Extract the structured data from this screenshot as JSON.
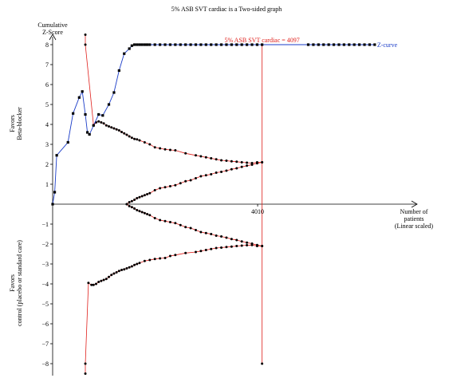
{
  "chart_data": {
    "type": "line",
    "title": "5% ASB SVT cardiac is a Two-sided graph",
    "ylabel_line1": "Cumulative",
    "ylabel_line2": "Z-Score",
    "xlabel_line1": "Number of",
    "xlabel_line2": "patients",
    "xlabel_line3": "(Linear scaled)",
    "upper_side_label_line1": "Favors",
    "upper_side_label_line2": "Beta-blocker",
    "lower_side_label_line1": "Favors",
    "lower_side_label_line2": "control (placebo or standard care)",
    "ylim": [
      -8.5,
      8.5
    ],
    "xlim": [
      0,
      7000
    ],
    "yticks": [
      -8,
      -7,
      -6,
      -5,
      -4,
      -3,
      -2,
      -1,
      1,
      2,
      3,
      4,
      5,
      6,
      7,
      8
    ],
    "x_tick_value": 4010,
    "x_tick_label": "4010",
    "ris_value": 4097,
    "ris_label": "5% ASB SVT cardiac = 4097",
    "zcurve_label": "Z-curve",
    "colors": {
      "zcurve": "#1a3cc8",
      "boundary": "#e0201c",
      "markers": "#000000"
    },
    "zcurve": {
      "name": "Z-curve",
      "x": [
        0,
        40,
        80,
        300,
        400,
        520,
        580,
        640,
        680,
        720,
        800,
        900,
        980,
        1100,
        1200,
        1300,
        1400,
        1500,
        1550,
        1600,
        1650,
        1700,
        1750,
        1800,
        1850,
        1900,
        2000,
        2100,
        2200,
        2300,
        2400,
        2500,
        2600,
        2700,
        2800,
        2900,
        3000,
        3100,
        3200,
        3300,
        3400,
        3500,
        3600,
        3700,
        3800,
        3900,
        4000,
        4097,
        5000,
        5100,
        5200,
        5300,
        5400,
        5500,
        5600,
        5700,
        5800,
        5900,
        6000,
        6100,
        6200,
        6300
      ],
      "y": [
        0,
        0.6,
        2.45,
        3.1,
        4.55,
        5.35,
        5.65,
        4.5,
        3.6,
        3.5,
        3.95,
        4.5,
        4.45,
        5.0,
        5.6,
        6.7,
        7.55,
        7.8,
        7.95,
        8.0,
        8.0,
        8.0,
        8.0,
        8.0,
        8.0,
        8.0,
        8.0,
        8.0,
        8.0,
        8.0,
        8.0,
        8.0,
        8.0,
        8.0,
        8.0,
        8.0,
        8.0,
        8.0,
        8.0,
        8.0,
        8.0,
        8.0,
        8.0,
        8.0,
        8.0,
        8.0,
        8.0,
        8.0,
        8.0,
        8.0,
        8.0,
        8.0,
        8.0,
        8.0,
        8.0,
        8.0,
        8.0,
        8.0,
        8.0,
        8.0,
        8.0,
        8.0
      ]
    },
    "upper_efficacy_boundary": {
      "x": [
        640,
        640,
        800,
        850,
        900,
        950,
        1000,
        1050,
        1100,
        1150,
        1200,
        1250,
        1300,
        1350,
        1400,
        1450,
        1500,
        1550,
        1600,
        1650,
        1700,
        1800,
        1900,
        2000,
        2100,
        2200,
        2300,
        2400,
        2600,
        2800,
        2900,
        3000,
        3100,
        3200,
        3300,
        3400,
        3500,
        3600,
        3700,
        3800,
        3900,
        4000,
        4097
      ],
      "y": [
        8.5,
        8.0,
        3.95,
        4.1,
        4.15,
        4.1,
        4.05,
        3.95,
        3.9,
        3.85,
        3.8,
        3.75,
        3.7,
        3.62,
        3.55,
        3.48,
        3.4,
        3.33,
        3.27,
        3.25,
        3.2,
        3.1,
        3.0,
        2.85,
        2.8,
        2.75,
        2.72,
        2.7,
        2.55,
        2.45,
        2.4,
        2.35,
        2.3,
        2.25,
        2.2,
        2.18,
        2.15,
        2.13,
        2.1,
        2.08,
        2.06,
        2.1,
        2.1
      ]
    },
    "upper_futility_boundary": {
      "x": [
        1450,
        1500,
        1550,
        1600,
        1650,
        1700,
        1750,
        1800,
        1850,
        1900,
        2000,
        2100,
        2200,
        2300,
        2400,
        2500,
        2600,
        2700,
        2800,
        2900,
        3000,
        3100,
        3200,
        3300,
        3400,
        3500,
        3600,
        3700,
        3800,
        3900,
        4000,
        4097
      ],
      "y": [
        0.0,
        0.1,
        0.15,
        0.22,
        0.3,
        0.35,
        0.4,
        0.45,
        0.5,
        0.55,
        0.7,
        0.8,
        0.85,
        0.9,
        0.95,
        1.05,
        1.15,
        1.2,
        1.3,
        1.4,
        1.45,
        1.5,
        1.58,
        1.62,
        1.68,
        1.75,
        1.8,
        1.87,
        1.93,
        1.98,
        2.05,
        2.1
      ]
    },
    "lower_futility_boundary": {
      "x": [
        1450,
        1500,
        1550,
        1600,
        1650,
        1700,
        1750,
        1800,
        1850,
        1900,
        2000,
        2100,
        2200,
        2300,
        2400,
        2500,
        2600,
        2700,
        2800,
        2900,
        3000,
        3100,
        3200,
        3300,
        3400,
        3500,
        3600,
        3700,
        3800,
        3900,
        4000,
        4097
      ],
      "y": [
        0.0,
        -0.1,
        -0.15,
        -0.22,
        -0.3,
        -0.35,
        -0.4,
        -0.45,
        -0.5,
        -0.55,
        -0.7,
        -0.8,
        -0.85,
        -0.9,
        -0.95,
        -1.05,
        -1.15,
        -1.2,
        -1.3,
        -1.4,
        -1.45,
        -1.5,
        -1.58,
        -1.62,
        -1.68,
        -1.75,
        -1.8,
        -1.87,
        -1.93,
        -1.98,
        -2.05,
        -2.1
      ]
    },
    "lower_efficacy_boundary": {
      "x": [
        640,
        640,
        700,
        760,
        800,
        850,
        900,
        950,
        1000,
        1050,
        1100,
        1150,
        1200,
        1250,
        1300,
        1350,
        1400,
        1450,
        1500,
        1550,
        1600,
        1650,
        1700,
        1800,
        1900,
        2000,
        2100,
        2200,
        2300,
        2400,
        2600,
        2800,
        2900,
        3000,
        3100,
        3200,
        3300,
        3400,
        3500,
        3600,
        3700,
        3800,
        3900,
        4000,
        4097
      ],
      "y": [
        -8.5,
        -8.0,
        -3.95,
        -4.05,
        -4.05,
        -4.0,
        -3.9,
        -3.85,
        -3.8,
        -3.75,
        -3.65,
        -3.55,
        -3.48,
        -3.42,
        -3.35,
        -3.3,
        -3.27,
        -3.22,
        -3.17,
        -3.12,
        -3.05,
        -3.0,
        -2.95,
        -2.85,
        -2.8,
        -2.75,
        -2.72,
        -2.7,
        -2.6,
        -2.55,
        -2.45,
        -2.4,
        -2.35,
        -2.3,
        -2.25,
        -2.2,
        -2.18,
        -2.15,
        -2.13,
        -2.1,
        -2.08,
        -2.06,
        -2.05,
        -2.1,
        -2.1
      ]
    }
  }
}
